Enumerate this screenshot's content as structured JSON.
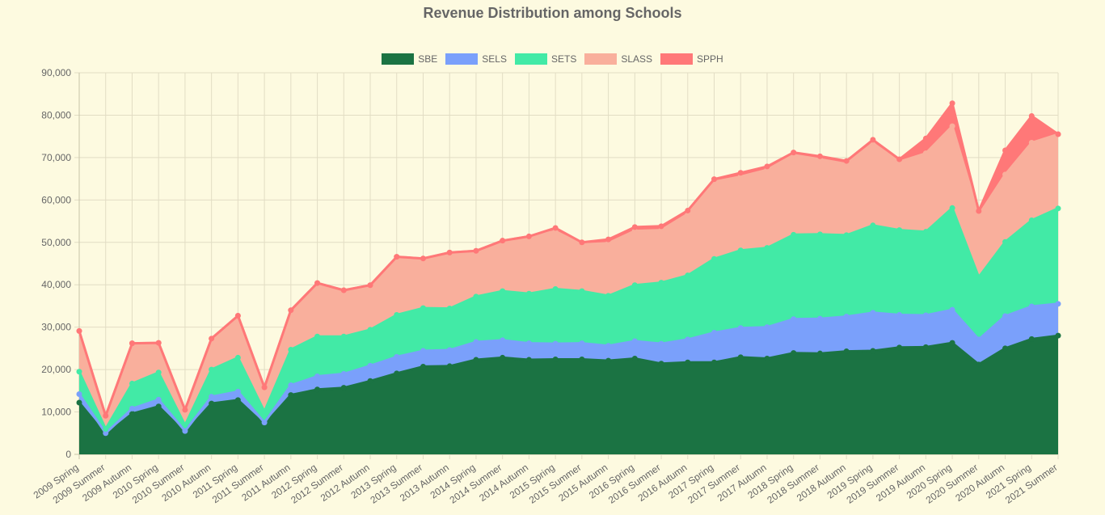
{
  "chart_data": {
    "type": "area",
    "stacked": true,
    "title": "Revenue Distribution among Schools",
    "xlabel": "",
    "ylabel": "",
    "ylim": [
      0,
      90000
    ],
    "yticks": [
      0,
      10000,
      20000,
      30000,
      40000,
      50000,
      60000,
      70000,
      80000,
      90000
    ],
    "ytick_labels": [
      "0",
      "10,000",
      "20,000",
      "30,000",
      "40,000",
      "50,000",
      "60,000",
      "70,000",
      "80,000",
      "90,000"
    ],
    "legend_position": "top",
    "grid": true,
    "categories": [
      "2009 Spring",
      "2009 Summer",
      "2009 Autumn",
      "2010 Spring",
      "2010 Summer",
      "2010 Autumn",
      "2011 Spring",
      "2011 Summer",
      "2011 Autumn",
      "2012 Spring",
      "2012 Summer",
      "2012 Autumn",
      "2013 Spring",
      "2013 Summer",
      "2013 Autumn",
      "2014 Spring",
      "2014 Summer",
      "2014 Autumn",
      "2015 Spring",
      "2015 Summer",
      "2015 Autumn",
      "2016 Spring",
      "2016 Summer",
      "2016 Autumn",
      "2017 Spring",
      "2017 Summer",
      "2017 Autumn",
      "2018 Spring",
      "2018 Summer",
      "2018 Autumn",
      "2019 Spring",
      "2019 Summer",
      "2019 Autumn",
      "2020 Spring",
      "2020 Summer",
      "2020 Autumn",
      "2021 Spring",
      "2021 Summer"
    ],
    "series": [
      {
        "name": "SBE",
        "color": "#1b7343",
        "values": [
          12200,
          4600,
          9600,
          11300,
          5100,
          12000,
          12800,
          7000,
          14000,
          15300,
          15700,
          17300,
          19100,
          20700,
          20800,
          22300,
          22800,
          22300,
          22400,
          22400,
          22100,
          22600,
          21400,
          21700,
          21700,
          22900,
          22600,
          23900,
          23800,
          24300,
          24400,
          25200,
          25300,
          26300,
          21200,
          25000,
          27200,
          28000
        ]
      },
      {
        "name": "SELS",
        "color": "#7aa0fb",
        "values": [
          2000,
          400,
          1200,
          1600,
          400,
          1600,
          2000,
          500,
          2300,
          3100,
          3300,
          3600,
          3900,
          3700,
          3800,
          4200,
          4100,
          3900,
          3700,
          3800,
          3500,
          4100,
          4700,
          5400,
          7000,
          6900,
          7400,
          8000,
          8200,
          8200,
          9000,
          7700,
          7500,
          7800,
          5900,
          7600,
          7700,
          7500
        ]
      },
      {
        "name": "SETS",
        "color": "#42eaa6",
        "values": [
          5300,
          1000,
          5900,
          6400,
          1400,
          6400,
          8000,
          2600,
          8400,
          9400,
          8800,
          8500,
          9900,
          10100,
          9800,
          10700,
          11600,
          11700,
          12900,
          12300,
          11800,
          13200,
          14400,
          15100,
          17400,
          18300,
          18700,
          19900,
          19900,
          19200,
          20600,
          20000,
          19700,
          24000,
          14700,
          17500,
          20300,
          22500
        ]
      },
      {
        "name": "SLASS",
        "color": "#f9af9c",
        "values": [
          9600,
          3100,
          9500,
          7000,
          3600,
          7300,
          9900,
          5700,
          9300,
          12600,
          10900,
          10500,
          13700,
          11700,
          13200,
          10800,
          11900,
          13500,
          13600,
          11000,
          12400,
          12800,
          12400,
          14500,
          18200,
          17400,
          18400,
          18800,
          17700,
          16800,
          19400,
          16100,
          18500,
          19300,
          14600,
          15900,
          18300,
          17500
        ]
      },
      {
        "name": "SPPH",
        "color": "#ff7878",
        "values": [
          0,
          0,
          0,
          0,
          0,
          0,
          0,
          0,
          0,
          0,
          0,
          0,
          0,
          0,
          0,
          0,
          0,
          0,
          800,
          500,
          900,
          900,
          900,
          800,
          600,
          900,
          800,
          600,
          700,
          700,
          800,
          600,
          3500,
          5400,
          1000,
          5700,
          6300,
          0
        ]
      }
    ]
  }
}
